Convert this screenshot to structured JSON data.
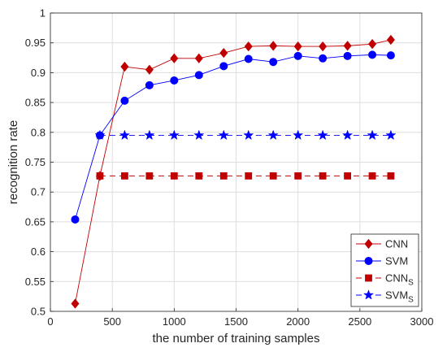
{
  "chart_data": {
    "type": "line",
    "xlabel": "the number of training samples",
    "ylabel": "recognition rate",
    "xlim": [
      0,
      3000
    ],
    "ylim": [
      0.5,
      1
    ],
    "xticks": [
      "0",
      "500",
      "1000",
      "1500",
      "2000",
      "2500",
      "3000"
    ],
    "yticks": [
      "0.5",
      "0.55",
      "0.6",
      "0.65",
      "0.7",
      "0.75",
      "0.8",
      "0.85",
      "0.9",
      "0.95",
      "1"
    ],
    "grid": true,
    "legend_position": "bottom-right",
    "x": [
      200,
      400,
      600,
      800,
      1000,
      1200,
      1400,
      1600,
      1800,
      2000,
      2200,
      2400,
      2600,
      2750
    ],
    "series": [
      {
        "name": "CNN",
        "legend": {
          "main": "CNN",
          "sub": ""
        },
        "color": "#c00000",
        "marker": "diamond",
        "values": [
          0.513,
          0.727,
          0.91,
          0.905,
          0.924,
          0.924,
          0.933,
          0.944,
          0.945,
          0.944,
          0.944,
          0.945,
          0.948,
          0.955
        ]
      },
      {
        "name": "SVM",
        "legend": {
          "main": "SVM",
          "sub": ""
        },
        "color": "#0000ff",
        "marker": "circle",
        "values": [
          0.654,
          0.795,
          0.853,
          0.879,
          0.887,
          0.896,
          0.911,
          0.923,
          0.918,
          0.928,
          0.924,
          0.928,
          0.93,
          0.929
        ]
      },
      {
        "name": "CNNS",
        "legend": {
          "main": "CNN",
          "sub": "S"
        },
        "color": "#c00000",
        "marker": "square",
        "dashed": true,
        "values": [
          null,
          0.727,
          0.727,
          0.727,
          0.727,
          0.727,
          0.727,
          0.727,
          0.727,
          0.727,
          0.727,
          0.727,
          0.727,
          0.727
        ]
      },
      {
        "name": "SVMS",
        "legend": {
          "main": "SVM",
          "sub": "S"
        },
        "color": "#0000ff",
        "marker": "star",
        "dashed": true,
        "values": [
          null,
          0.795,
          0.795,
          0.795,
          0.795,
          0.795,
          0.795,
          0.795,
          0.795,
          0.795,
          0.795,
          0.795,
          0.795,
          0.795
        ]
      }
    ]
  }
}
